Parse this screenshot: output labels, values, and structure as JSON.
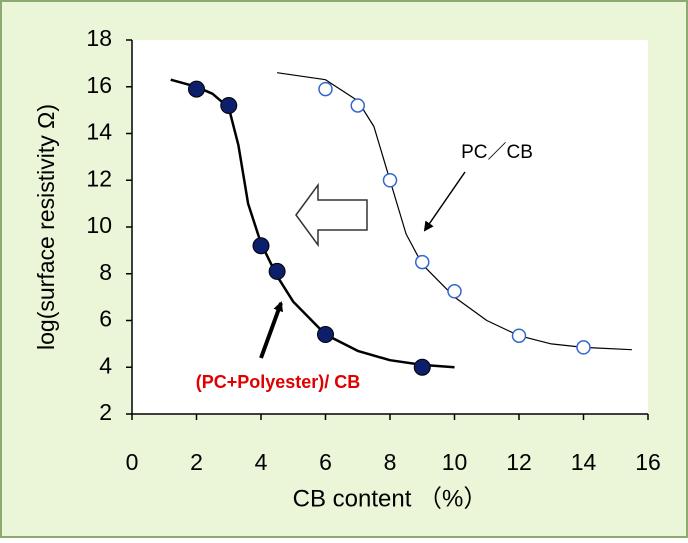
{
  "chart_data": {
    "type": "scatter",
    "xlabel": "CB content （%）",
    "ylabel": "log(surface resistivity Ω)",
    "xlim": [
      0,
      16
    ],
    "xticks": [
      0,
      2,
      4,
      6,
      8,
      10,
      12,
      14,
      16
    ],
    "ylim": [
      2,
      18
    ],
    "yticks": [
      2,
      4,
      6,
      8,
      10,
      12,
      14,
      16,
      18
    ],
    "series": [
      {
        "name": "(PC+Polyester)/ CB",
        "color": "#0d1f6b",
        "marker": "filled",
        "x": [
          2,
          3,
          4,
          4.5,
          6,
          9
        ],
        "values": [
          15.9,
          15.2,
          9.2,
          8.1,
          5.4,
          4.0
        ],
        "fit_x": [
          1.2,
          2,
          2.5,
          3,
          3.3,
          3.6,
          4,
          4.5,
          5,
          6,
          7,
          8,
          9,
          10
        ],
        "fit_y": [
          16.3,
          16.0,
          15.7,
          15.1,
          13.5,
          11.0,
          9.3,
          7.9,
          6.8,
          5.4,
          4.7,
          4.3,
          4.1,
          4.0
        ]
      },
      {
        "name": "PC／CB",
        "color": "#3366cc",
        "marker": "open",
        "x": [
          6,
          7,
          8,
          9,
          10,
          12,
          14
        ],
        "values": [
          15.9,
          15.2,
          12.0,
          8.5,
          7.25,
          5.35,
          4.85
        ],
        "fit_x": [
          4.5,
          6,
          7,
          7.5,
          8,
          8.5,
          9,
          10,
          11,
          12,
          13,
          14,
          15.5
        ],
        "fit_y": [
          16.6,
          16.3,
          15.4,
          14.3,
          12.0,
          9.7,
          8.4,
          7.0,
          6.0,
          5.35,
          5.0,
          4.85,
          4.75
        ]
      }
    ]
  }
}
